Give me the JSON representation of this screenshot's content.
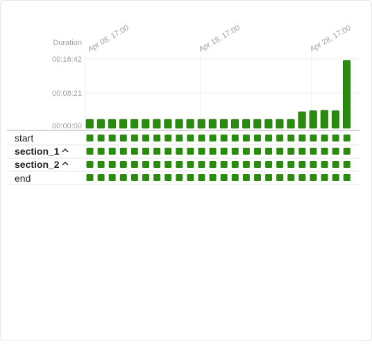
{
  "chart": {
    "y_title": "Duration",
    "y_ticks": [
      "00:16:42",
      "00:08:21",
      "00:00:00"
    ],
    "y_tick_seconds": [
      1002,
      501,
      0
    ],
    "x_ticks": [
      "Apr 08, 17:00",
      "Apr 18, 17:00",
      "Apr 28, 17:00"
    ],
    "bar_color": "#2a8c0e",
    "bar_color_dark": "#1f6c08"
  },
  "chart_data": {
    "type": "bar",
    "title": "",
    "ylabel": "Duration",
    "ylim_seconds": [
      0,
      1002
    ],
    "series": [
      {
        "values_seconds": [
          130,
          130,
          130,
          130,
          130,
          130,
          130,
          130,
          130,
          130,
          130,
          130,
          130,
          130,
          130,
          130,
          130,
          130,
          130,
          240,
          255,
          260,
          255,
          980
        ]
      }
    ]
  },
  "rows": [
    {
      "label": "start",
      "bold": false,
      "expand": false
    },
    {
      "label": "section_1",
      "bold": true,
      "expand": true
    },
    {
      "label": "section_2",
      "bold": true,
      "expand": true
    },
    {
      "label": "end",
      "bold": false,
      "expand": false
    }
  ],
  "square_color": "#2a8c0e"
}
